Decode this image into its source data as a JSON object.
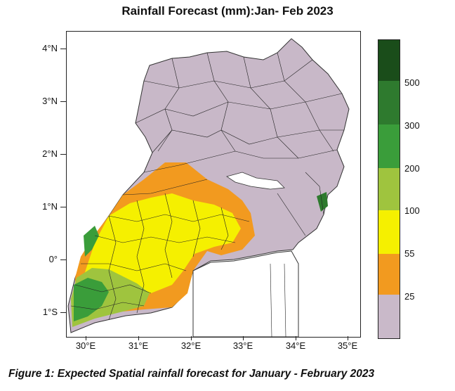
{
  "title": "Rainfall Forecast (mm):Jan- Feb 2023",
  "caption": "Figure 1:  Expected Spatial rainfall forecast  for January - February 2023",
  "map": {
    "lat_ticks": [
      "4°N",
      "3°N",
      "2°N",
      "1°N",
      "0°",
      "1°S"
    ],
    "lon_ticks": [
      "30°E",
      "31°E",
      "32°E",
      "33°E",
      "34°E",
      "35°E"
    ],
    "region": "Uganda"
  },
  "legend": {
    "labels": [
      "500",
      "300",
      "200",
      "100",
      "55",
      "25"
    ],
    "colors": [
      "#1a4d1a",
      "#2e7a2e",
      "#3a9d3a",
      "#6fb040",
      "#9fc43e",
      "#f5f000",
      "#f29a1f",
      "#c9b9c9"
    ]
  }
}
